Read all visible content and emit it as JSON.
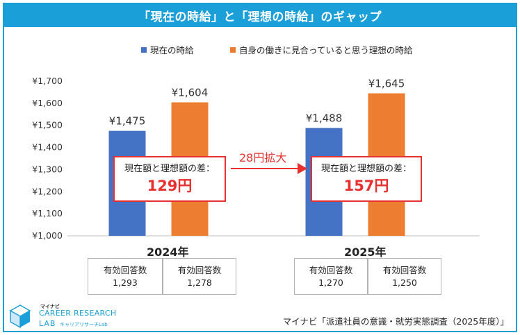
{
  "title": "「現在の時給」と「理想の時給」のギャップ",
  "legend": [
    {
      "name": "現在の時給",
      "color": "#4472c4"
    },
    {
      "name": "自身の働きに見合っていると思う理想の時給",
      "color": "#ed7d31"
    }
  ],
  "chart_data": {
    "type": "bar",
    "categories": [
      "2024年",
      "2025年"
    ],
    "series": [
      {
        "name": "現在の時給",
        "values": [
          1475,
          1488
        ],
        "labels": [
          "¥1,475",
          "¥1,488"
        ],
        "color": "#4472c4"
      },
      {
        "name": "自身の働きに見合っていると思う理想の時給",
        "values": [
          1604,
          1645
        ],
        "labels": [
          "¥1,604",
          "¥1,645"
        ],
        "color": "#ed7d31"
      }
    ],
    "ylim": [
      1000,
      1700
    ],
    "yticks": [
      1000,
      1100,
      1200,
      1300,
      1400,
      1500,
      1600,
      1700
    ],
    "ytick_labels": [
      "¥1,000",
      "¥1,100",
      "¥1,200",
      "¥1,300",
      "¥1,400",
      "¥1,500",
      "¥1,600",
      "¥1,700"
    ],
    "grid": false,
    "legend_position": "top"
  },
  "callouts": [
    {
      "label": "現在額と理想額の差：",
      "value": "129円"
    },
    {
      "label": "現在額と理想額の差：",
      "value": "157円"
    }
  ],
  "growth_label": "28円拡大",
  "years": [
    "2024年",
    "2025年"
  ],
  "sample_sizes": [
    {
      "label": "有効回答数",
      "value": "1,293"
    },
    {
      "label": "有効回答数",
      "value": "1,278"
    },
    {
      "label": "有効回答数",
      "value": "1,270"
    },
    {
      "label": "有効回答数",
      "value": "1,250"
    }
  ],
  "logo": {
    "top": "マイナビ",
    "main": "CAREER RESEARCH",
    "lab": "LAB",
    "sub": "キャリアリサーチLab"
  },
  "source": "マイナビ「派遣社員の意識・就労実態調査（2025年度）」",
  "colors": {
    "frame": "#1a9fd8",
    "accent": "#e8312e"
  }
}
